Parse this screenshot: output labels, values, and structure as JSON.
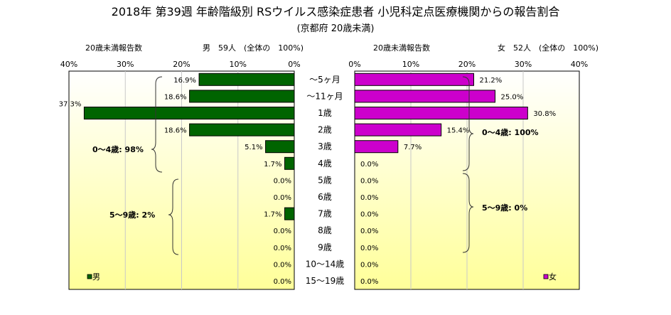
{
  "title": "2018年 第39週 年齢階級別 RSウイルス感染症患者 小児科定点医療機関からの報告割合",
  "subtitle": "(京都府 20歳未満)",
  "left_panel": {
    "header_left": "20歳未満報告数",
    "header_right": "男　59人　(全体の　100%)",
    "legend": "男",
    "bracket_label_1": "0～4歳: 98%",
    "bracket_label_2": "5～9歳: 2%",
    "color": "#006400"
  },
  "right_panel": {
    "header_left": "20歳未満報告数",
    "header_right": "女　52人　(全体の　100%)",
    "legend": "女",
    "bracket_label_1": "0～4歳: 100%",
    "bracket_label_2": "5～9歳: 0%",
    "color": "#CC00CC"
  },
  "chart_data": [
    {
      "type": "bar",
      "orientation": "horizontal",
      "direction": "reversed",
      "categories": [
        "～5ヶ月",
        "～11ヶ月",
        "1歳",
        "2歳",
        "3歳",
        "4歳",
        "5歳",
        "6歳",
        "7歳",
        "8歳",
        "9歳",
        "10～14歳",
        "15～19歳"
      ],
      "series": [
        {
          "name": "男",
          "values": [
            16.9,
            18.6,
            37.3,
            18.6,
            5.1,
            1.7,
            0.0,
            0.0,
            1.7,
            0.0,
            0.0,
            0.0,
            0.0
          ],
          "labels": [
            "16.9%",
            "18.6%",
            "37.3%",
            "18.6%",
            "5.1%",
            "1.7%",
            "0.0%",
            "0.0%",
            "1.7%",
            "0.0%",
            "0.0%",
            "0.0%",
            "0.0%"
          ]
        }
      ],
      "xlim": [
        0,
        40
      ],
      "ticks": [
        "0%",
        "10%",
        "20%",
        "30%",
        "40%"
      ],
      "grid": true,
      "legend_position": "bottom-left"
    },
    {
      "type": "bar",
      "orientation": "horizontal",
      "categories": [
        "～5ヶ月",
        "～11ヶ月",
        "1歳",
        "2歳",
        "3歳",
        "4歳",
        "5歳",
        "6歳",
        "7歳",
        "8歳",
        "9歳",
        "10～14歳",
        "15～19歳"
      ],
      "series": [
        {
          "name": "女",
          "values": [
            21.2,
            25.0,
            30.8,
            15.4,
            7.7,
            0.0,
            0.0,
            0.0,
            0.0,
            0.0,
            0.0,
            0.0,
            0.0
          ],
          "labels": [
            "21.2%",
            "25.0%",
            "30.8%",
            "15.4%",
            "7.7%",
            "0.0%",
            "0.0%",
            "0.0%",
            "0.0%",
            "0.0%",
            "0.0%",
            "0.0%",
            "0.0%"
          ]
        }
      ],
      "xlim": [
        0,
        40
      ],
      "ticks": [
        "0%",
        "10%",
        "20%",
        "30%",
        "40%"
      ],
      "grid": true,
      "legend_position": "bottom-right"
    }
  ]
}
